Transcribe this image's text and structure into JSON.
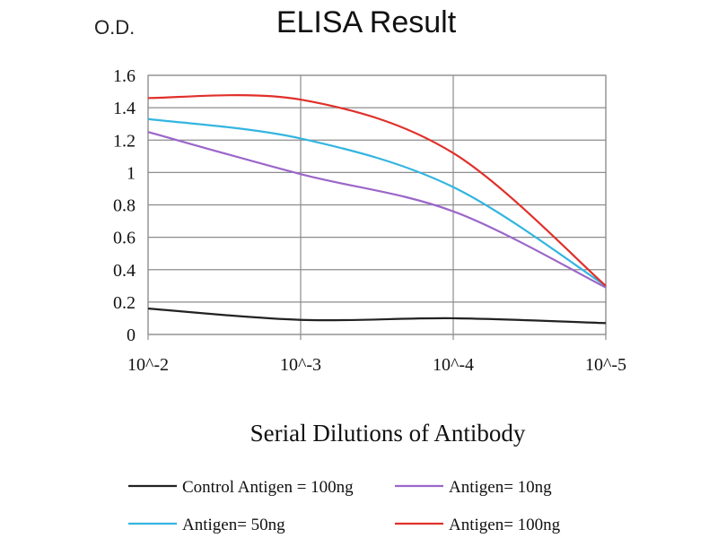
{
  "chart_data": {
    "type": "line",
    "title": "ELISA Result",
    "ylabel": "O.D.",
    "xlabel": "Serial Dilutions of Antibody",
    "categories": [
      "10^-2",
      "10^-3",
      "10^-4",
      "10^-5"
    ],
    "ylim": [
      0,
      1.6
    ],
    "yticks": [
      "0",
      "0.2",
      "0.4",
      "0.6",
      "0.8",
      "1",
      "1.2",
      "1.4",
      "1.6"
    ],
    "grid": true,
    "legend_position": "bottom",
    "series": [
      {
        "name": "Control Antigen = 100ng",
        "color": "#222222",
        "values": [
          0.16,
          0.09,
          0.1,
          0.07
        ]
      },
      {
        "name": "Antigen= 10ng",
        "color": "#9b66c9",
        "values": [
          1.25,
          0.99,
          0.76,
          0.29
        ]
      },
      {
        "name": "Antigen= 50ng",
        "color": "#33b5e0",
        "values": [
          1.33,
          1.21,
          0.91,
          0.3
        ]
      },
      {
        "name": "Antigen= 100ng",
        "color": "#e0302a",
        "values": [
          1.46,
          1.45,
          1.12,
          0.3
        ]
      }
    ]
  }
}
